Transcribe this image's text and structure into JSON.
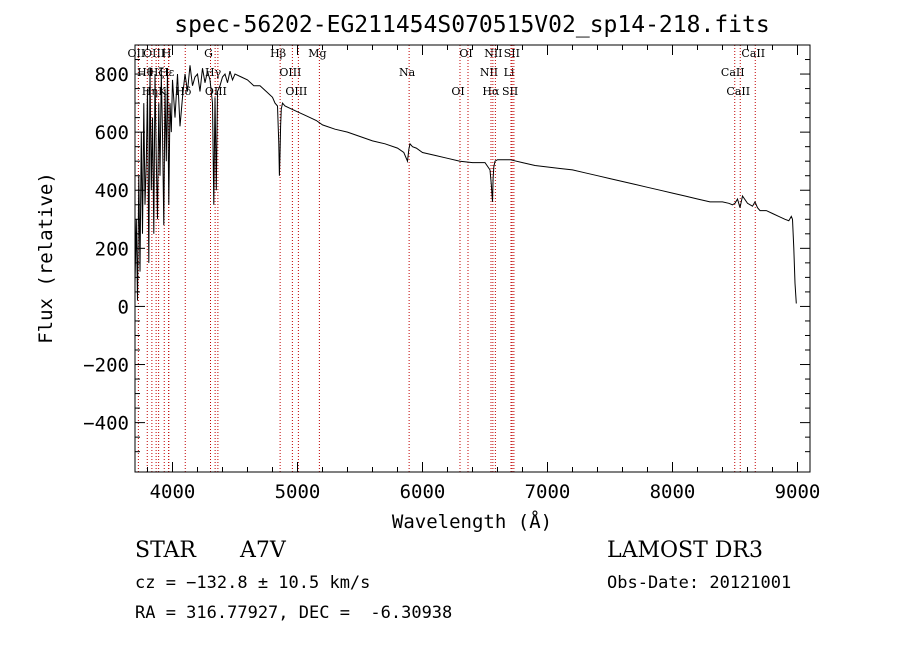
{
  "chart_data": {
    "type": "line",
    "title": "spec-56202-EG211454S070515V02_sp14-218.fits",
    "xlabel": "Wavelength (Å)",
    "ylabel": "Flux (relative)",
    "xlim": [
      3700,
      9100
    ],
    "ylim": [
      -570,
      900
    ],
    "x_ticks": [
      4000,
      5000,
      6000,
      7000,
      8000,
      9000
    ],
    "y_ticks": [
      -400,
      -200,
      0,
      200,
      400,
      600,
      800
    ],
    "series": [
      {
        "name": "spectrum",
        "x": [
          3700,
          3710,
          3720,
          3730,
          3740,
          3750,
          3760,
          3770,
          3780,
          3790,
          3800,
          3810,
          3820,
          3830,
          3840,
          3850,
          3860,
          3870,
          3880,
          3890,
          3900,
          3910,
          3920,
          3930,
          3940,
          3950,
          3960,
          3970,
          3980,
          3990,
          4000,
          4020,
          4040,
          4060,
          4080,
          4100,
          4120,
          4140,
          4160,
          4180,
          4200,
          4220,
          4240,
          4260,
          4280,
          4300,
          4320,
          4330,
          4340,
          4350,
          4360,
          4380,
          4400,
          4420,
          4440,
          4460,
          4480,
          4500,
          4550,
          4600,
          4650,
          4700,
          4750,
          4800,
          4820,
          4840,
          4850,
          4855,
          4860,
          4865,
          4870,
          4880,
          4900,
          4950,
          5000,
          5050,
          5100,
          5150,
          5200,
          5300,
          5400,
          5500,
          5600,
          5700,
          5800,
          5850,
          5880,
          5890,
          5900,
          5920,
          5950,
          6000,
          6100,
          6200,
          6300,
          6400,
          6500,
          6540,
          6550,
          6560,
          6565,
          6570,
          6580,
          6600,
          6700,
          6800,
          6900,
          7000,
          7100,
          7200,
          7300,
          7400,
          7500,
          7600,
          7700,
          7800,
          7900,
          8000,
          8100,
          8200,
          8300,
          8400,
          8450,
          8480,
          8500,
          8520,
          8540,
          8560,
          8600,
          8640,
          8660,
          8680,
          8700,
          8750,
          8800,
          8850,
          8900,
          8930,
          8950,
          8960,
          8970,
          8980,
          8990
        ],
        "values": [
          80,
          300,
          20,
          450,
          120,
          600,
          250,
          700,
          350,
          500,
          750,
          150,
          820,
          400,
          650,
          250,
          800,
          500,
          300,
          700,
          450,
          800,
          600,
          280,
          750,
          500,
          820,
          350,
          700,
          600,
          780,
          650,
          800,
          620,
          720,
          800,
          740,
          830,
          760,
          790,
          800,
          740,
          820,
          770,
          810,
          780,
          700,
          350,
          720,
          400,
          740,
          760,
          790,
          800,
          770,
          810,
          780,
          800,
          790,
          780,
          760,
          760,
          740,
          720,
          700,
          690,
          560,
          450,
          520,
          620,
          680,
          700,
          690,
          680,
          670,
          660,
          650,
          640,
          625,
          610,
          600,
          585,
          570,
          560,
          545,
          530,
          500,
          540,
          560,
          550,
          545,
          530,
          520,
          510,
          500,
          495,
          495,
          470,
          420,
          360,
          440,
          480,
          500,
          505,
          505,
          495,
          485,
          480,
          475,
          470,
          460,
          450,
          440,
          430,
          420,
          410,
          400,
          390,
          380,
          370,
          360,
          360,
          355,
          350,
          355,
          370,
          340,
          380,
          355,
          345,
          360,
          340,
          330,
          330,
          320,
          310,
          300,
          295,
          310,
          300,
          200,
          80,
          10
        ]
      }
    ],
    "lines": [
      {
        "wl": 3727,
        "label": "OII"
      },
      {
        "wl": 3798,
        "label": "Hθ"
      },
      {
        "wl": 3835,
        "label": "Hη"
      },
      {
        "wl": 3869,
        "label": "OIII"
      },
      {
        "wl": 3889,
        "label": "Hζ"
      },
      {
        "wl": 3934,
        "label": "K"
      },
      {
        "wl": 3969,
        "label": "H"
      },
      {
        "wl": 3970,
        "label": "Hε"
      },
      {
        "wl": 4102,
        "label": "Hδ"
      },
      {
        "wl": 4304,
        "label": "G"
      },
      {
        "wl": 4341,
        "label": "Hγ"
      },
      {
        "wl": 4363,
        "label": "OIII"
      },
      {
        "wl": 4861,
        "label": "Hβ"
      },
      {
        "wl": 4959,
        "label": "OIII"
      },
      {
        "wl": 5007,
        "label": "OIII"
      },
      {
        "wl": 5175,
        "label": "Mg"
      },
      {
        "wl": 5893,
        "label": "Na"
      },
      {
        "wl": 6300,
        "label": "OI"
      },
      {
        "wl": 6364,
        "label": "OI"
      },
      {
        "wl": 6548,
        "label": "NII"
      },
      {
        "wl": 6563,
        "label": "Hα"
      },
      {
        "wl": 6583,
        "label": "NII"
      },
      {
        "wl": 6708,
        "label": "Li"
      },
      {
        "wl": 6717,
        "label": "SII"
      },
      {
        "wl": 6731,
        "label": "SII"
      },
      {
        "wl": 8498,
        "label": "CaII"
      },
      {
        "wl": 8542,
        "label": "CaII"
      },
      {
        "wl": 8662,
        "label": "CaII"
      }
    ],
    "line_color": "#c00000",
    "series_color": "#000000"
  },
  "info": {
    "object_class": "STAR",
    "subclass": "A7V",
    "survey": "LAMOST DR3",
    "cz": "cz = −132.8 ± 10.5 km/s",
    "obs_date": "Obs-Date: 20121001",
    "coords": "RA = 316.77927, DEC =  -6.30938"
  }
}
